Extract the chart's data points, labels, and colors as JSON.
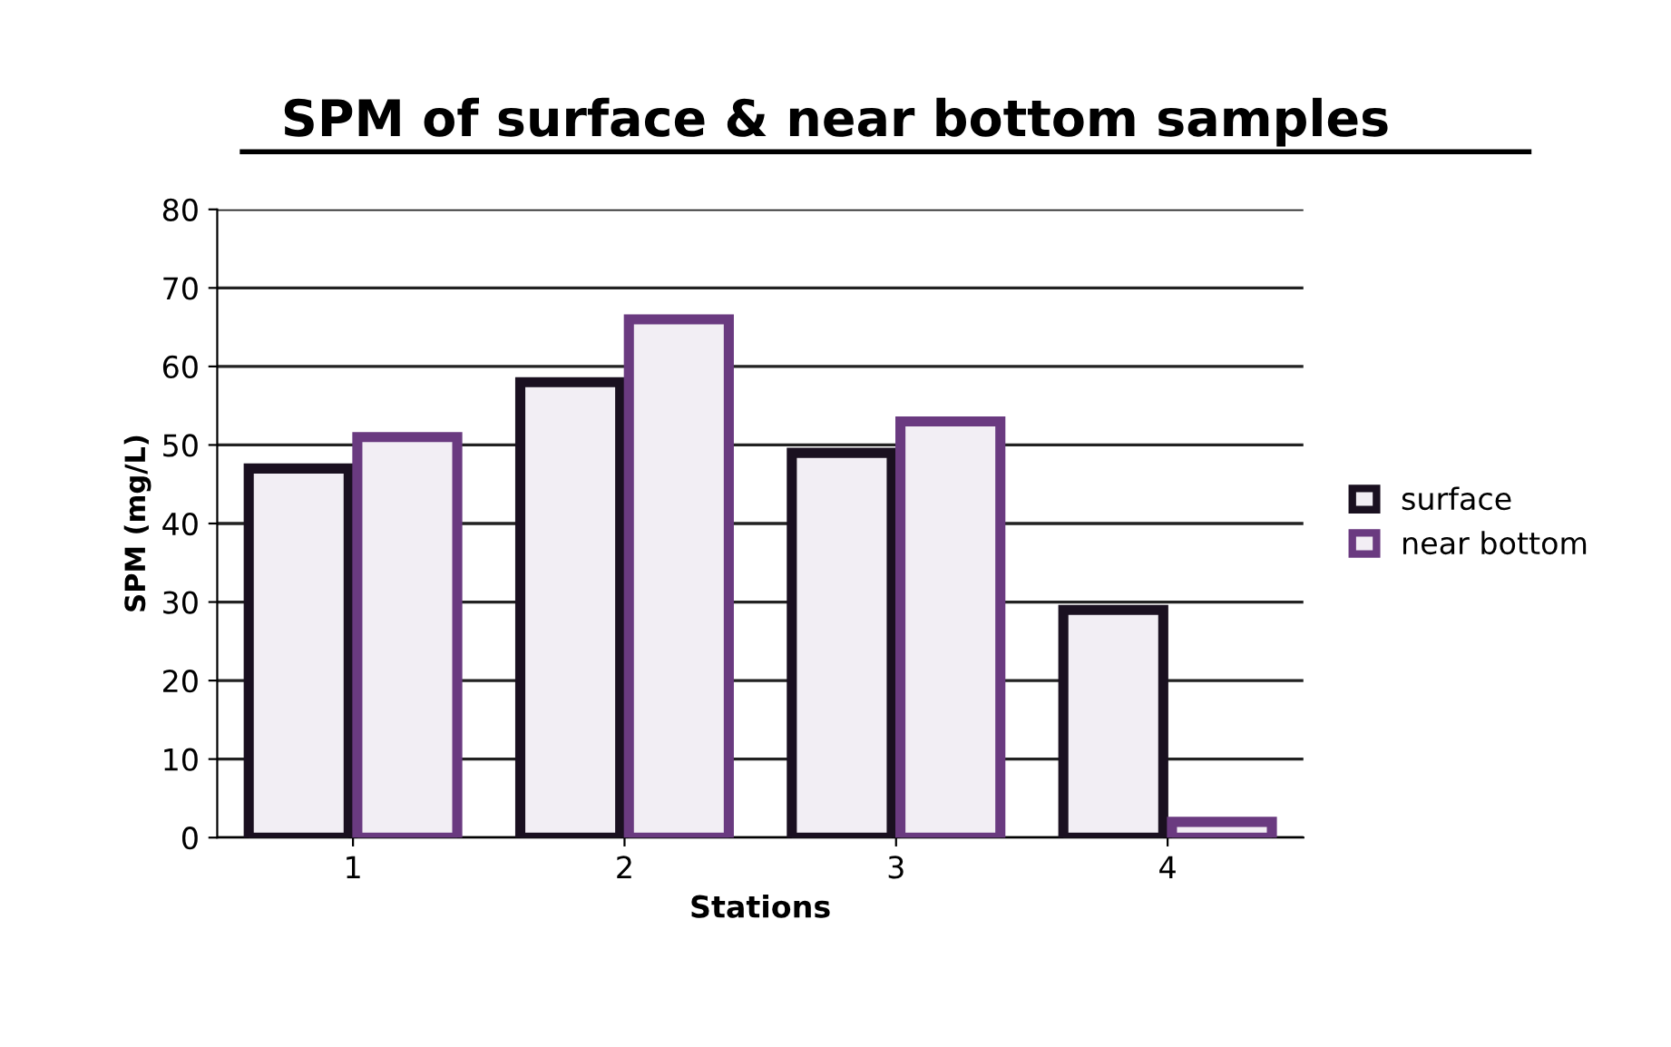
{
  "chart_data": {
    "type": "bar",
    "title": "SPM of surface & near bottom samples",
    "xlabel": "Stations",
    "ylabel": "SPM (mg/L)",
    "categories": [
      "1",
      "2",
      "3",
      "4"
    ],
    "series": [
      {
        "name": "surface",
        "color": "#1a1020",
        "values": [
          47,
          58,
          49,
          29
        ]
      },
      {
        "name": "near bottom",
        "color": "#6a3a80",
        "values": [
          51,
          66,
          53,
          2
        ]
      }
    ],
    "ylim": [
      0,
      80
    ],
    "yticks": [
      0,
      10,
      20,
      30,
      40,
      50,
      60,
      70,
      80
    ],
    "grid": "y",
    "legend": "right"
  }
}
